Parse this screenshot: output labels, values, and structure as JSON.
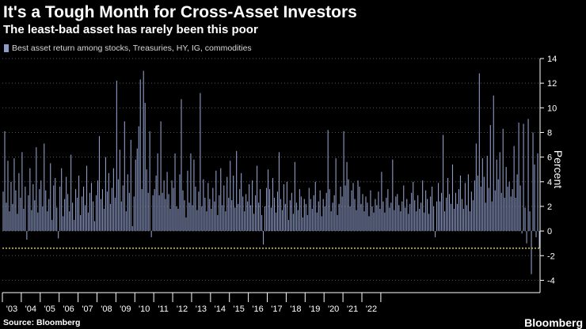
{
  "header": {
    "title": "It's a Tough Month for Cross-Asset Investors",
    "subtitle": "The least-bad asset has rarely been this poor"
  },
  "footer": {
    "source": "Source: Bloomberg",
    "brand": "Bloomberg"
  },
  "colors": {
    "bar": "#8e9cc7",
    "reference_line": "#d8c93a",
    "grid": "#555555",
    "background": "#000000"
  },
  "chart_data": {
    "type": "bar",
    "title": "It's a Tough Month for Cross-Asset Investors",
    "subtitle": "The least-bad asset has rarely been this poor",
    "legend": [
      "Best asset return among stocks, Treasuries, HY, IG, commodities"
    ],
    "legend_position": "top-left",
    "xlabel": "",
    "ylabel": "Percent",
    "ylim": [
      -5,
      14
    ],
    "yticks": [
      -4,
      -2,
      0,
      2,
      4,
      6,
      8,
      10,
      12,
      14
    ],
    "grid": "dotted-horizontal",
    "reference_line": -1.4,
    "x_tick_labels": [
      "'03",
      "'04",
      "'05",
      "'06",
      "'07",
      "'08",
      "'09",
      "'10",
      "'11",
      "'12",
      "'13",
      "'14",
      "'15",
      "'16",
      "'17",
      "'18",
      "'19",
      "'20",
      "'21",
      "'22"
    ],
    "start_year": 2003,
    "series": [
      {
        "name": "Best asset return among stocks, Treasuries, HY, IG, commodities",
        "values": [
          3.2,
          8.1,
          2.3,
          5.7,
          1.6,
          4.0,
          2.2,
          5.9,
          3.3,
          1.4,
          4.7,
          2.7,
          6.4,
          1.8,
          3.6,
          -0.7,
          2.9,
          5.1,
          1.7,
          3.8,
          2.5,
          6.8,
          1.5,
          3.4,
          4.1,
          2.0,
          7.1,
          3.3,
          1.6,
          2.6,
          5.5,
          0.9,
          3.7,
          4.3,
          1.9,
          -0.6,
          3.6,
          5.1,
          1.2,
          2.6,
          4.4,
          3.0,
          1.6,
          6.2,
          2.3,
          0.9,
          3.4,
          2.7,
          4.5,
          1.3,
          2.8,
          3.6,
          2.1,
          5.3,
          1.5,
          3.1,
          3.9,
          2.4,
          0.8,
          2.9,
          4.1,
          7.7,
          2.6,
          3.4,
          1.8,
          6.0,
          3.2,
          4.7,
          2.2,
          3.5,
          5.1,
          2.7,
          12.2,
          4.2,
          6.6,
          2.4,
          3.7,
          8.9,
          1.6,
          4.6,
          3.1,
          7.4,
          0.4,
          2.8,
          5.8,
          6.7,
          8.5,
          12.3,
          3.4,
          13.0,
          10.4,
          5.0,
          3.1,
          8.1,
          -0.5,
          2.9,
          3.4,
          4.5,
          6.3,
          2.9,
          8.9,
          3.1,
          4.1,
          2.6,
          4.8,
          3.0,
          1.8,
          4.1,
          3.5,
          6.3,
          2.0,
          1.8,
          4.6,
          10.7,
          3.3,
          2.5,
          1.1,
          4.9,
          2.3,
          6.3,
          2.1,
          5.8,
          3.6,
          1.7,
          3.2,
          11.2,
          2.0,
          4.2,
          2.7,
          1.6,
          3.9,
          2.6,
          1.8,
          3.5,
          2.4,
          4.9,
          1.3,
          2.9,
          5.1,
          2.1,
          3.7,
          1.6,
          4.4,
          2.7,
          5.7,
          2.5,
          4.5,
          1.9,
          6.5,
          2.2,
          3.4,
          4.7,
          2.8,
          1.6,
          3.0,
          2.4,
          3.8,
          2.1,
          4.1,
          1.4,
          2.9,
          5.3,
          2.3,
          3.4,
          1.3,
          -1.1,
          2.0,
          3.5,
          5.0,
          3.4,
          1.9,
          4.3,
          2.7,
          1.5,
          3.2,
          6.4,
          2.6,
          1.7,
          3.8,
          2.2,
          4.0,
          0.9,
          2.5,
          3.1,
          1.4,
          5.6,
          2.3,
          1.7,
          3.4,
          2.8,
          1.1,
          2.6,
          2.2,
          1.3,
          3.5,
          2.6,
          1.8,
          2.9,
          4.0,
          1.5,
          2.4,
          3.3,
          1.2,
          2.6,
          2.0,
          3.1,
          8.2,
          3.4,
          1.6,
          2.3,
          2.9,
          5.9,
          1.3,
          2.2,
          3.6,
          2.8,
          8.1,
          3.7,
          5.6,
          4.2,
          2.0,
          3.3,
          3.9,
          2.6,
          1.7,
          4.1,
          3.6,
          2.2,
          3.0,
          1.6,
          2.8,
          2.3,
          1.2,
          3.3,
          2.0,
          1.5,
          2.6,
          2.1,
          3.2,
          1.8,
          4.8,
          2.4,
          1.5,
          2.7,
          3.4,
          1.9,
          2.3,
          5.8,
          1.7,
          2.8,
          3.0,
          2.1,
          1.6,
          2.4,
          3.7,
          1.9,
          2.6,
          1.4,
          2.2,
          3.1,
          4.0,
          2.5,
          1.6,
          2.9,
          1.8,
          2.3,
          4.1,
          1.5,
          3.3,
          2.6,
          1.4,
          2.8,
          3.6,
          2.0,
          -0.5,
          2.4,
          3.9,
          2.4,
          3.1,
          7.8,
          1.6,
          2.7,
          4.3,
          3.0,
          2.2,
          5.4,
          1.8,
          3.1,
          2.2,
          3.4,
          4.5,
          2.6,
          1.8,
          3.9,
          2.1,
          4.6,
          1.6,
          3.2,
          2.5,
          4.1,
          7.1,
          4.5,
          12.8,
          3.6,
          5.9,
          4.4,
          2.3,
          6.1,
          3.5,
          8.6,
          2.4,
          11.0,
          3.3,
          5.8,
          4.2,
          6.4,
          3.1,
          8.3,
          2.7,
          5.2,
          3.6,
          4.0,
          2.8,
          3.4,
          6.9,
          2.7,
          4.6,
          8.8,
          3.7,
          -0.2,
          8.7,
          1.9,
          -1.0,
          9.1,
          1.6,
          -3.5,
          8.0,
          5.4,
          -0.5,
          6.3,
          -1.4
        ]
      }
    ]
  }
}
